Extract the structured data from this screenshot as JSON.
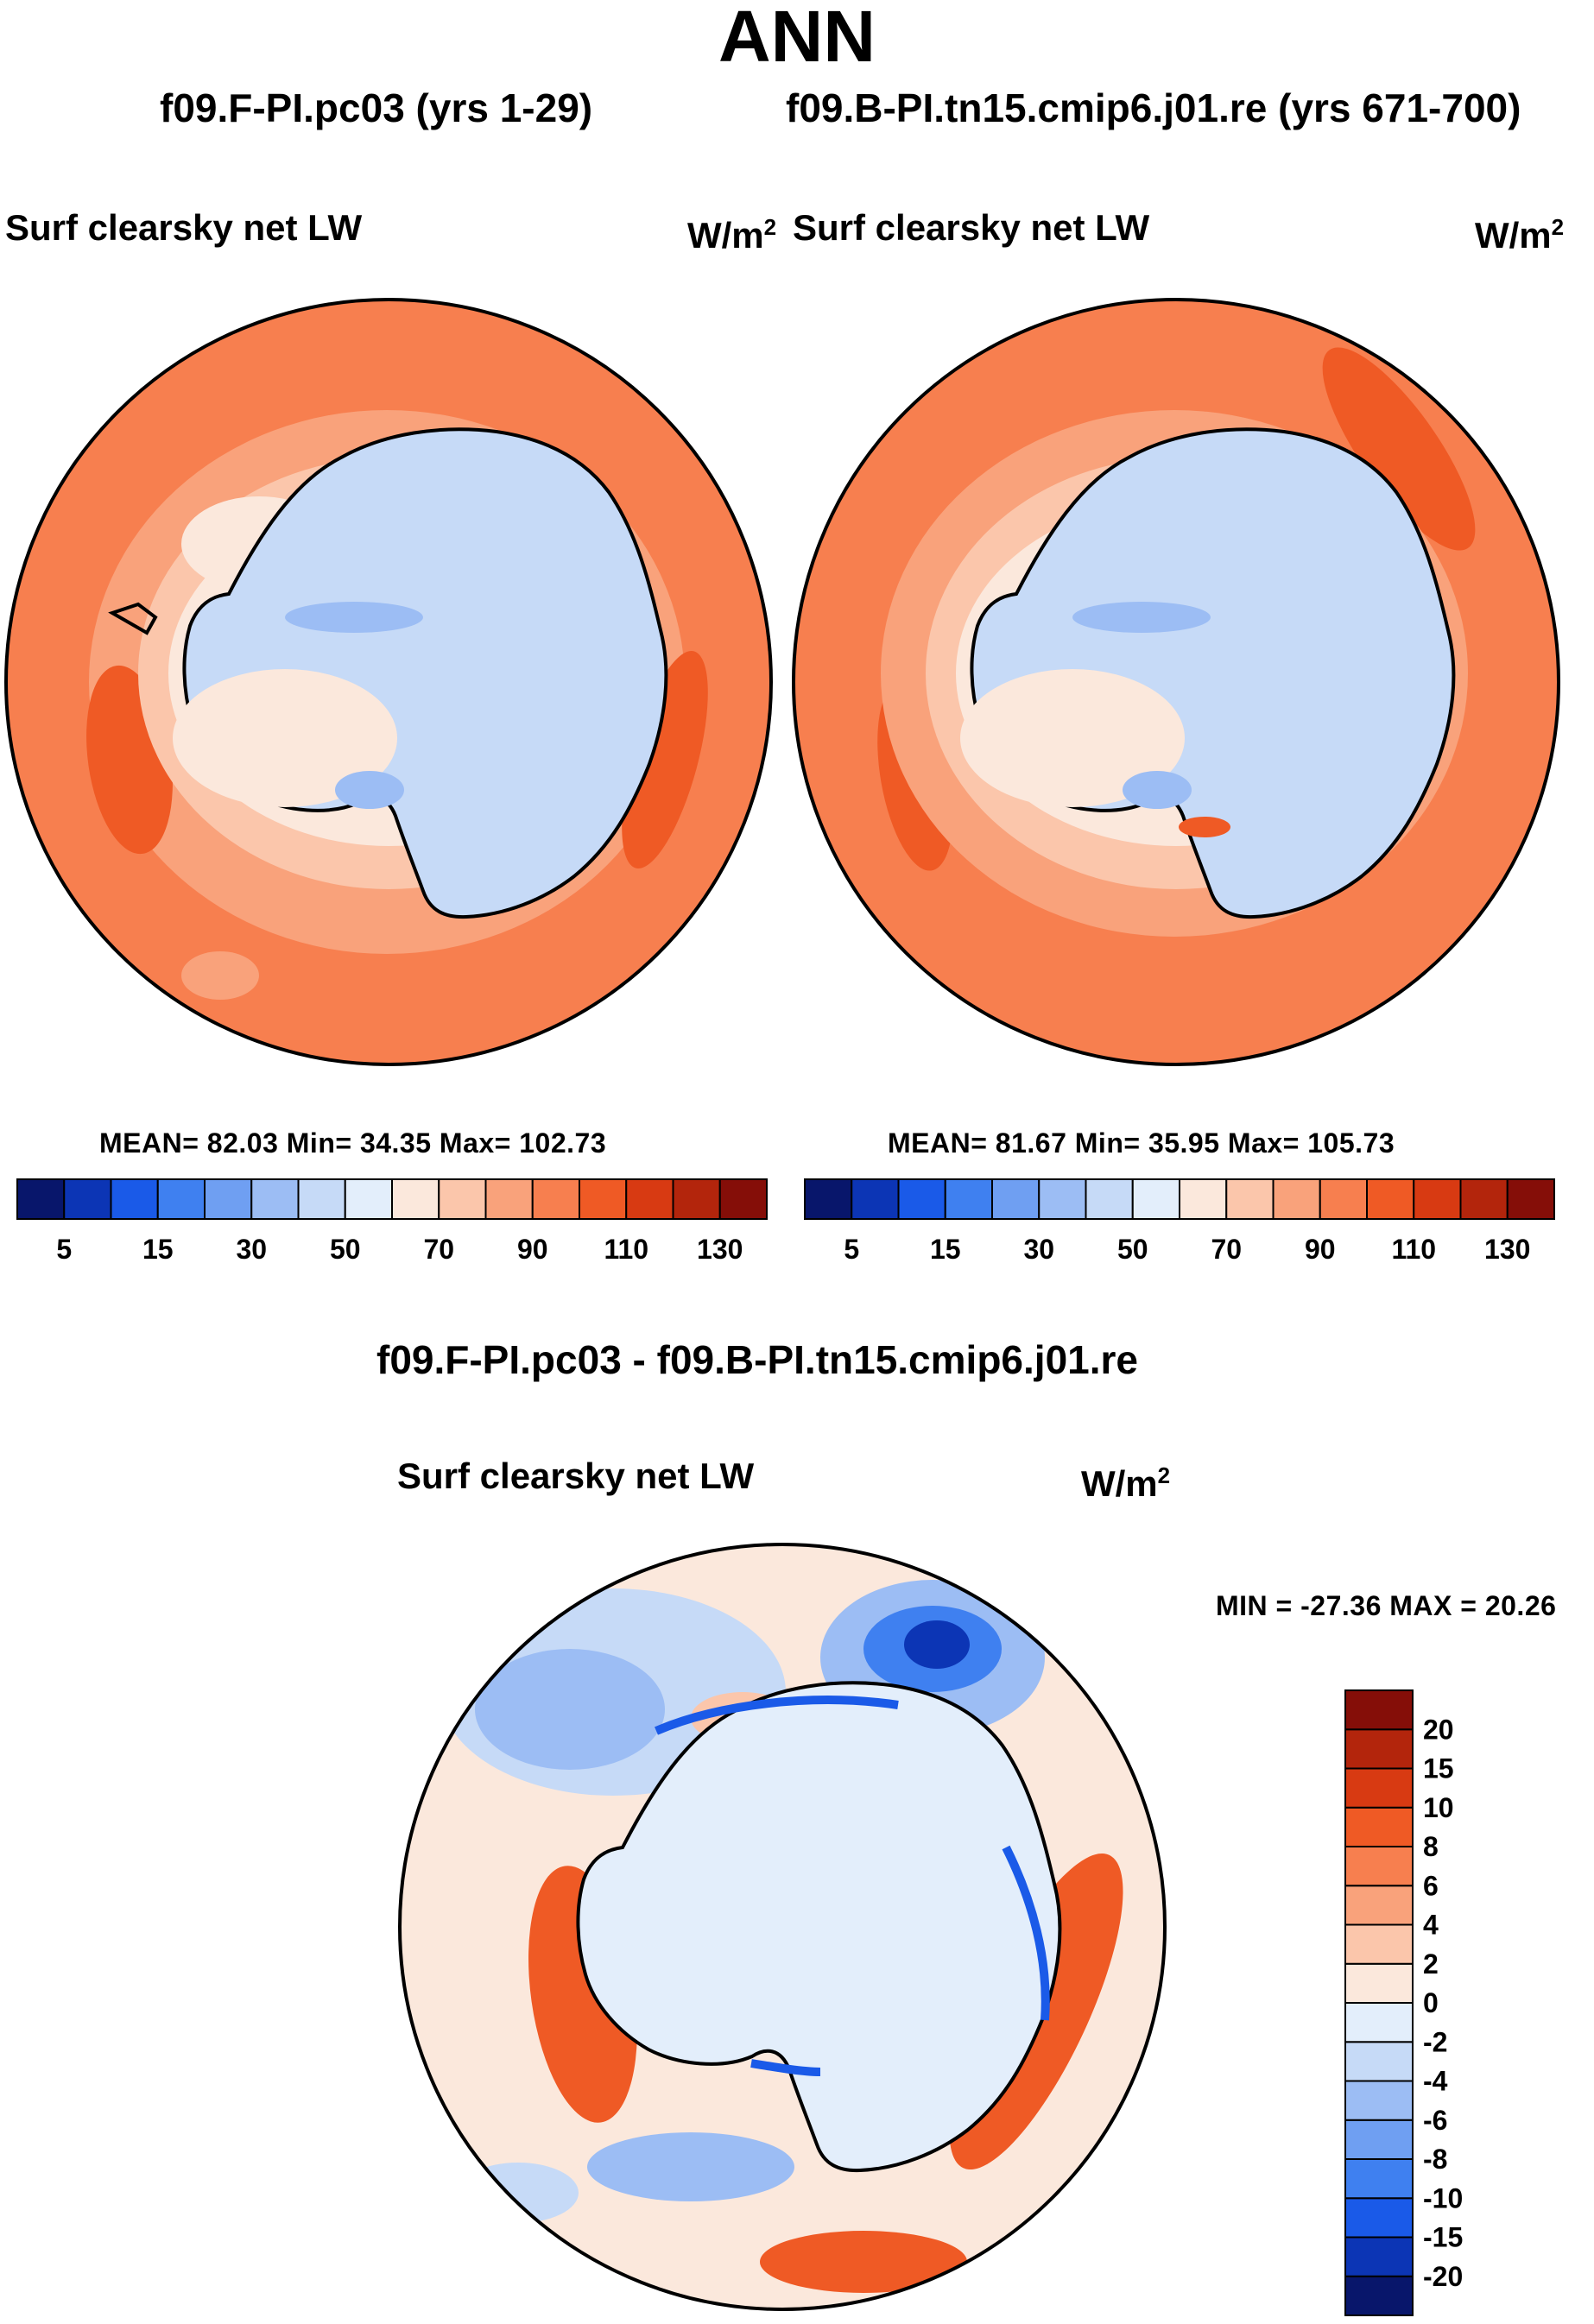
{
  "figure": {
    "season": "ANN",
    "variable": "Surf clearsky net LW",
    "units_base": "W/m",
    "units_exp": "2",
    "panels": [
      {
        "case_title": "f09.F-PI.pc03 (yrs 1-29)",
        "stats": "MEAN=  82.03  Min=  34.35  Max= 102.73"
      },
      {
        "case_title": "f09.B-PI.tn15.cmip6.j01.re (yrs 671-700)",
        "stats": "MEAN=  81.67  Min=  35.95  Max= 105.73"
      }
    ],
    "diff": {
      "title": "f09.F-PI.pc03 - f09.B-PI.tn15.cmip6.j01.re",
      "stats": "MIN = -27.36 MAX =  20.26"
    }
  },
  "colorbars": {
    "main": {
      "colors": [
        "#08166b",
        "#0c35b5",
        "#1a5ae8",
        "#3f80f0",
        "#6f9ff2",
        "#9cbdf4",
        "#c6daf7",
        "#e3eefb",
        "#fbe8dc",
        "#fbc6ab",
        "#f9a27b",
        "#f77f4f",
        "#ef5a25",
        "#d83a12",
        "#b3250c",
        "#850e08"
      ],
      "labels": [
        "5",
        "15",
        "30",
        "50",
        "70",
        "90",
        "110",
        "130"
      ]
    },
    "diff": {
      "colors": [
        "#08166b",
        "#0c35b5",
        "#1a5ae8",
        "#3f80f0",
        "#6f9ff2",
        "#9cbdf4",
        "#c6daf7",
        "#e3eefb",
        "#fbe8dc",
        "#fbc6ab",
        "#f9a27b",
        "#f77f4f",
        "#ef5a25",
        "#d83a12",
        "#b3250c",
        "#850e08"
      ],
      "labels": [
        "-20",
        "-15",
        "-10",
        "-8",
        "-6",
        "-4",
        "-2",
        "0",
        "2",
        "4",
        "6",
        "8",
        "10",
        "15",
        "20"
      ]
    }
  }
}
